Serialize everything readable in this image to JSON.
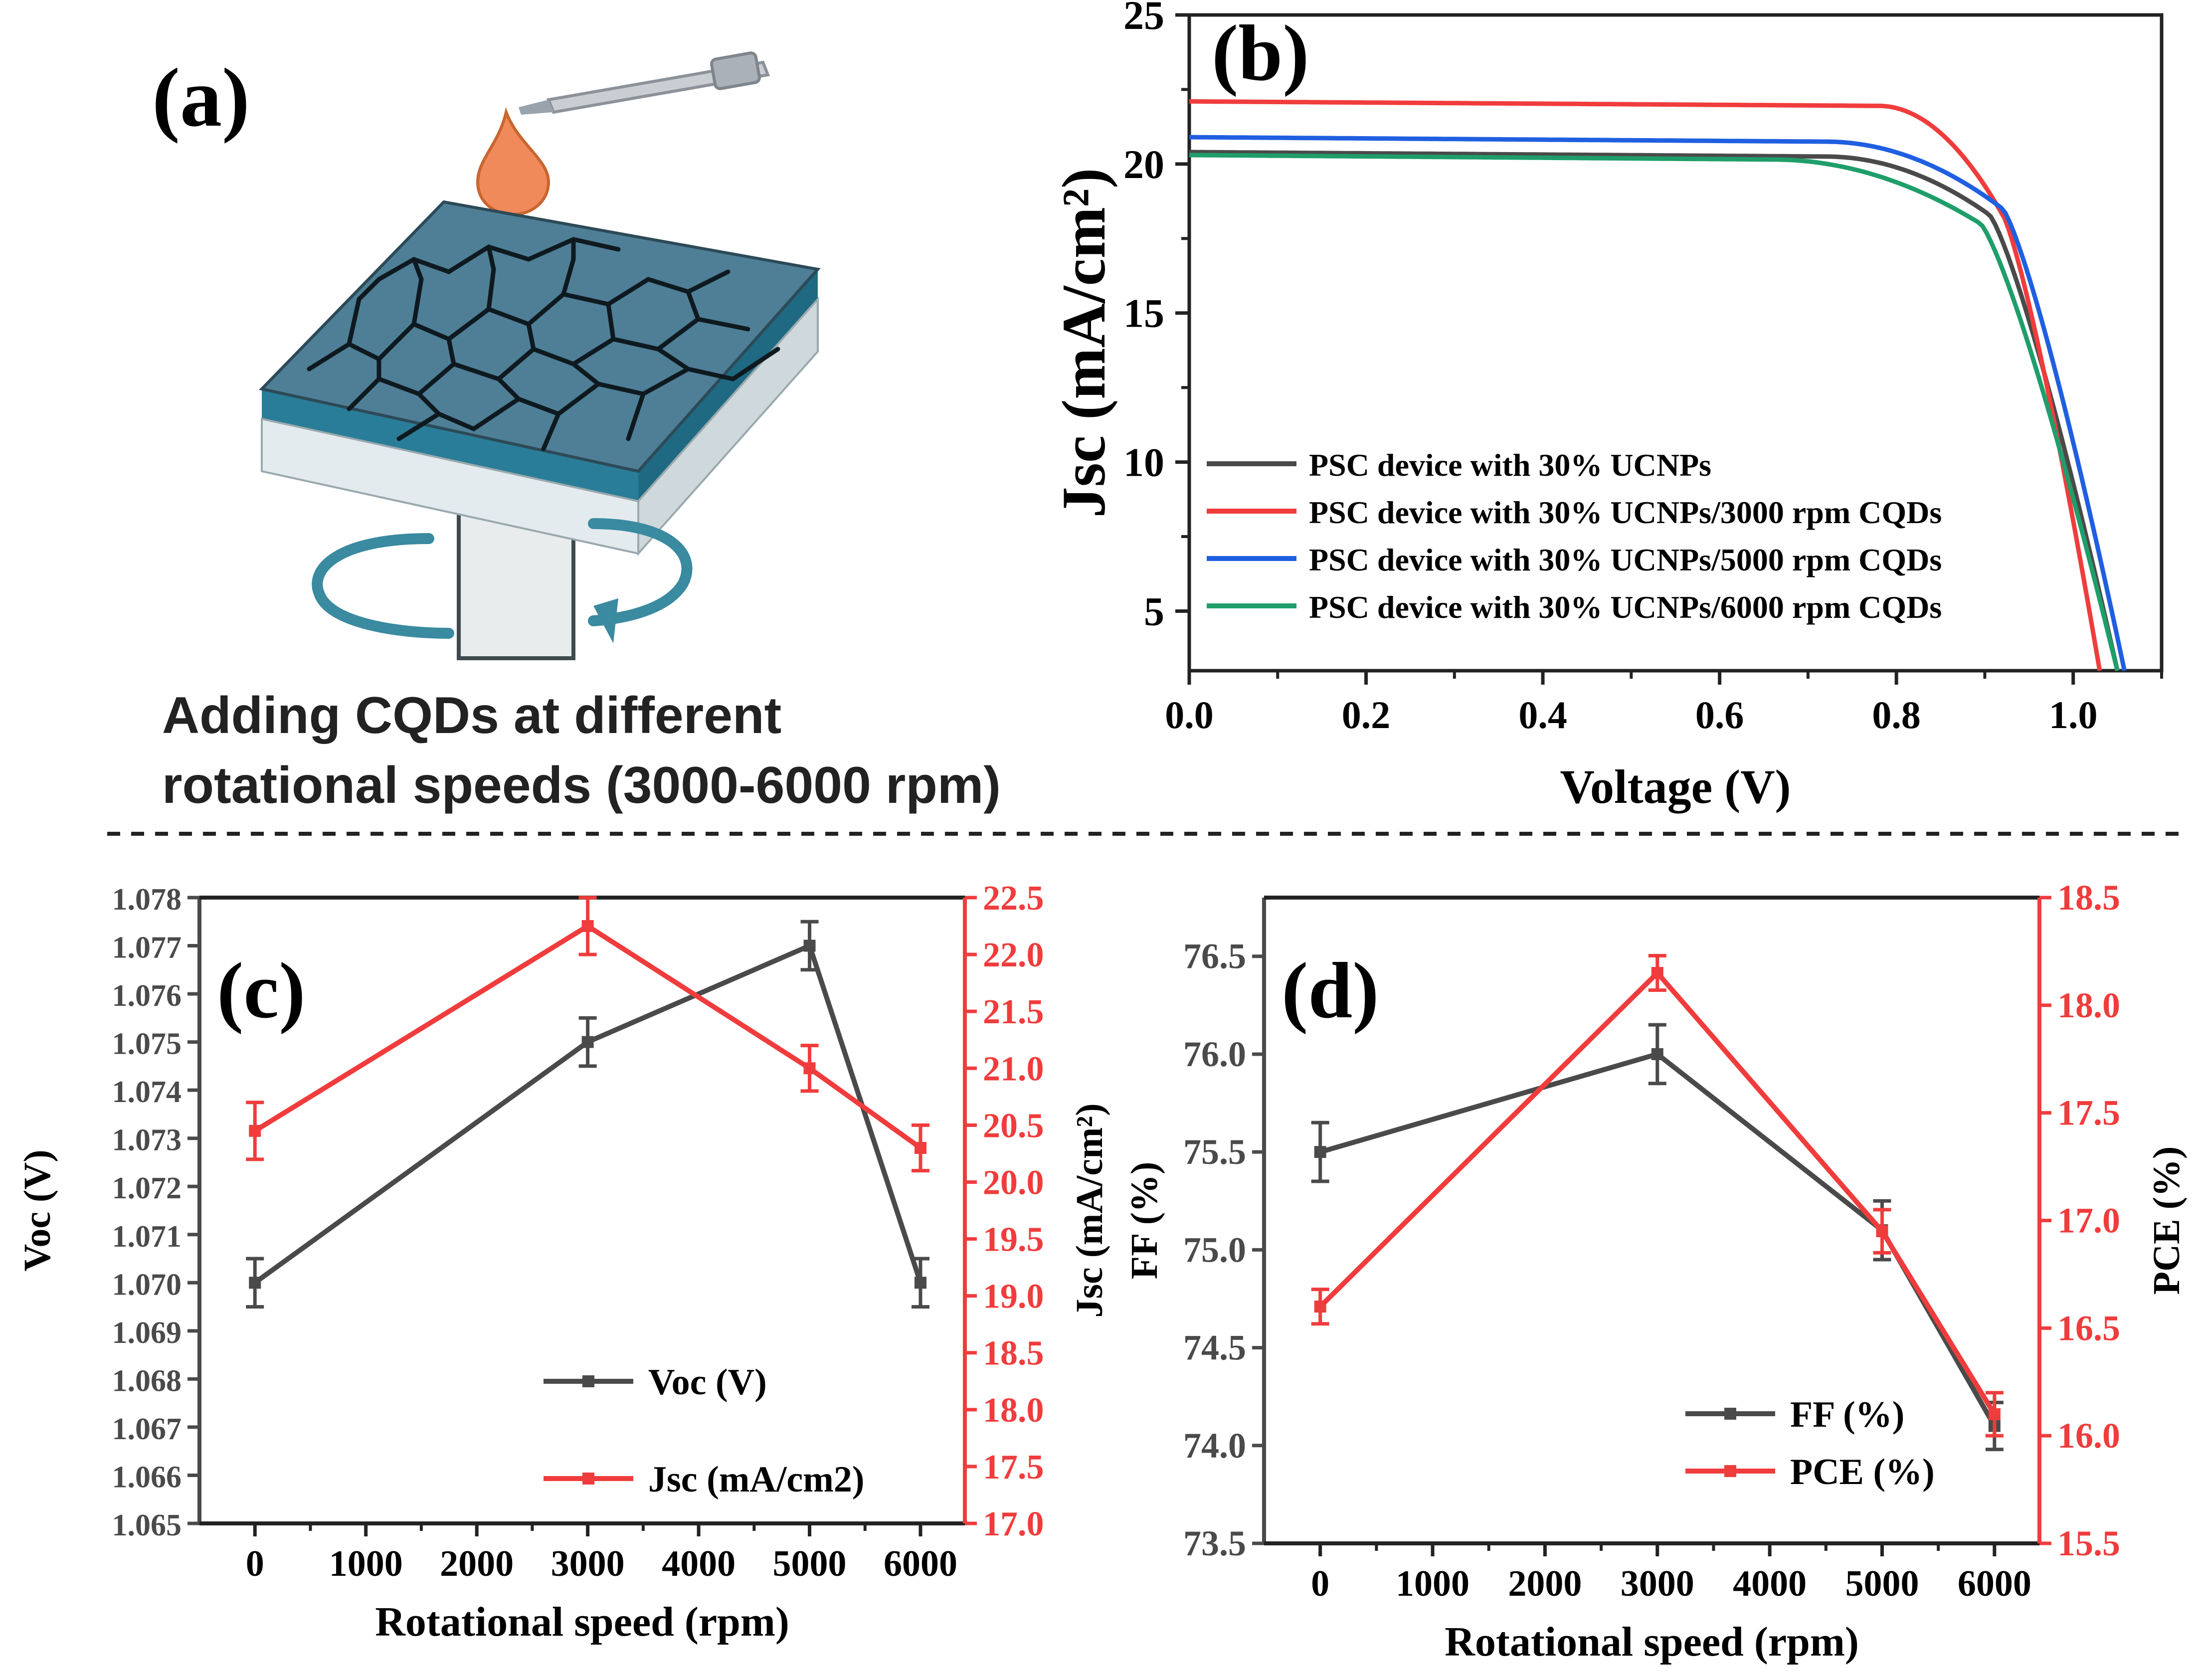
{
  "panel_a": {
    "label": "(a)",
    "caption_line1": "Adding CQDs at different",
    "caption_line2": "rotational speeds (3000-6000 rpm)"
  },
  "colors": {
    "black_series": "#4a4a4a",
    "red_series": "#f03c3c",
    "blue_series": "#1f5fe0",
    "green_series": "#1f9e6a",
    "panel_teal": "#4f7f97"
  },
  "chart_data": [
    {
      "panel": "(b)",
      "type": "line",
      "xlabel": "Voltage (V)",
      "ylabel": "Jsc (mA/cm²)",
      "xlim": [
        0,
        1.1
      ],
      "ylim": [
        3,
        25
      ],
      "xticks": [
        "0.0",
        "0.2",
        "0.4",
        "0.6",
        "0.8",
        "1.0"
      ],
      "yticks": [
        "5",
        "10",
        "15",
        "20",
        "25"
      ],
      "legend_position": "lower-left",
      "series": [
        {
          "name": "PSC device with 30% UCNPs",
          "Jsc0": 20.4,
          "Voc": 1.05,
          "flat_end": 0.72,
          "sat_voc": 0.905,
          "sat_j": 18.3,
          "color_key": "black_series"
        },
        {
          "name": "PSC device with 30% UCNPs/3000 rpm CQDs",
          "Jsc0": 22.1,
          "Voc": 1.03,
          "flat_end": 0.78,
          "sat_voc": 0.92,
          "sat_j": 18.3,
          "color_key": "red_series"
        },
        {
          "name": "PSC device with 30% UCNPs/5000 rpm CQDs",
          "Jsc0": 20.9,
          "Voc": 1.058,
          "flat_end": 0.72,
          "sat_voc": 0.92,
          "sat_j": 18.5,
          "color_key": "blue_series"
        },
        {
          "name": "PSC device with 30% UCNPs/6000 rpm CQDs",
          "Jsc0": 20.3,
          "Voc": 1.05,
          "flat_end": 0.66,
          "sat_voc": 0.895,
          "sat_j": 18.0,
          "color_key": "green_series"
        }
      ]
    },
    {
      "panel": "(c)",
      "type": "line",
      "xlabel": "Rotational speed (rpm)",
      "ylabel_left": "Voc (V)",
      "ylabel_right": "Jsc (mA/cm²)",
      "x": [
        0,
        3000,
        5000,
        6000
      ],
      "xlim": [
        -500,
        6400
      ],
      "xticks": [
        "0",
        "1000",
        "2000",
        "3000",
        "4000",
        "5000",
        "6000"
      ],
      "ylim_left": [
        1.065,
        1.078
      ],
      "ylim_right": [
        17.0,
        22.5
      ],
      "yticks_left": [
        "1.065",
        "1.066",
        "1.067",
        "1.068",
        "1.069",
        "1.070",
        "1.071",
        "1.072",
        "1.073",
        "1.074",
        "1.075",
        "1.076",
        "1.077",
        "1.078"
      ],
      "yticks_right": [
        "17.0",
        "17.5",
        "18.0",
        "18.5",
        "19.0",
        "19.5",
        "20.0",
        "20.5",
        "21.0",
        "21.5",
        "22.0",
        "22.5"
      ],
      "legend_position": "lower-right",
      "series": [
        {
          "name": "Voc (V)",
          "axis": "left",
          "values": [
            1.07,
            1.075,
            1.077,
            1.07
          ],
          "errors": [
            0.0005,
            0.0005,
            0.0005,
            0.0005
          ],
          "color_key": "black_series"
        },
        {
          "name": "Jsc (mA/cm2)",
          "axis": "right",
          "values": [
            20.45,
            22.25,
            21.0,
            20.3
          ],
          "errors": [
            0.25,
            0.25,
            0.2,
            0.2
          ],
          "color_key": "red_series"
        }
      ]
    },
    {
      "panel": "(d)",
      "type": "line",
      "xlabel": "Rotational speed (rpm)",
      "ylabel_left": "FF (%)",
      "ylabel_right": "PCE (%)",
      "x": [
        0,
        3000,
        5000,
        6000
      ],
      "xlim": [
        -500,
        6400
      ],
      "xticks": [
        "0",
        "1000",
        "2000",
        "3000",
        "4000",
        "5000",
        "6000"
      ],
      "ylim_left": [
        73.5,
        76.8
      ],
      "ylim_right": [
        15.5,
        18.5
      ],
      "yticks_left": [
        "73.5",
        "74.0",
        "74.5",
        "75.0",
        "75.5",
        "76.0",
        "76.5"
      ],
      "yticks_right": [
        "15.5",
        "16.0",
        "16.5",
        "17.0",
        "17.5",
        "18.0",
        "18.5"
      ],
      "legend_position": "lower-right",
      "series": [
        {
          "name": "FF (%)",
          "axis": "left",
          "values": [
            75.5,
            76.0,
            75.1,
            74.1
          ],
          "errors": [
            0.15,
            0.15,
            0.15,
            0.12
          ],
          "color_key": "black_series"
        },
        {
          "name": "PCE (%)",
          "axis": "right",
          "values": [
            16.6,
            18.15,
            16.95,
            16.1
          ],
          "errors": [
            0.08,
            0.08,
            0.1,
            0.1
          ],
          "color_key": "red_series"
        }
      ]
    }
  ]
}
